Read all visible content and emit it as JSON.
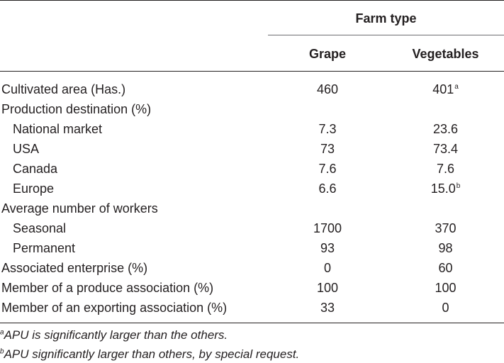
{
  "header": {
    "group_label": "Farm type",
    "col_grape": "Grape",
    "col_vegetables": "Vegetables"
  },
  "rows": [
    {
      "label": "Cultivated area (Has.)",
      "grape": "460",
      "vegetables": "401",
      "vegetables_note": "a"
    },
    {
      "label": "Production destination (%)",
      "grape": "",
      "vegetables": ""
    },
    {
      "label": "National market",
      "grape": "7.3",
      "vegetables": "23.6"
    },
    {
      "label": "USA",
      "grape": "73",
      "vegetables": "73.4"
    },
    {
      "label": "Canada",
      "grape": "7.6",
      "vegetables": "7.6"
    },
    {
      "label": "Europe",
      "grape": "6.6",
      "vegetables": "15.0",
      "vegetables_note": "b"
    },
    {
      "label": "Average number of workers",
      "grape": "",
      "vegetables": ""
    },
    {
      "label": "Seasonal",
      "grape": "1700",
      "vegetables": "370"
    },
    {
      "label": "Permanent",
      "grape": "93",
      "vegetables": "98"
    },
    {
      "label": "Associated enterprise (%)",
      "grape": "0",
      "vegetables": "60"
    },
    {
      "label": "Member of a produce association (%)",
      "grape": "100",
      "vegetables": "100"
    },
    {
      "label": "Member of an exporting association (%)",
      "grape": "33",
      "vegetables": "0"
    }
  ],
  "footnotes": [
    {
      "mark": "a",
      "text": "APU is significantly larger than the others."
    },
    {
      "mark": "b",
      "text": "APU significantly larger than others, by special request."
    }
  ]
}
